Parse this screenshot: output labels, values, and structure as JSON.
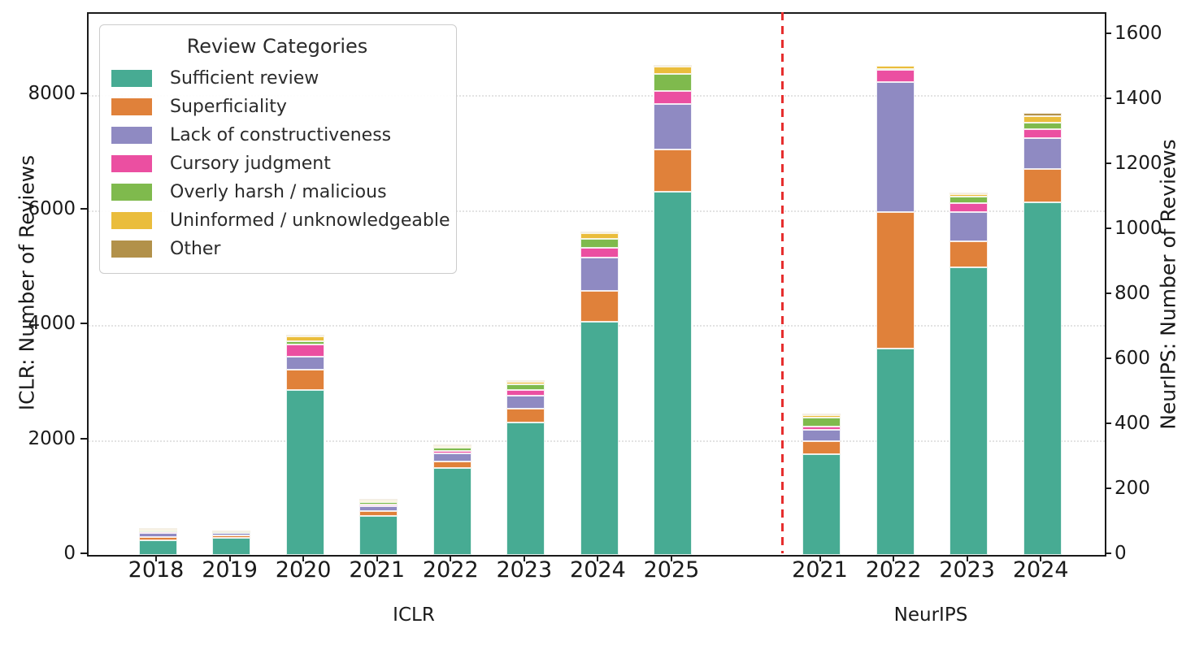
{
  "figure": {
    "left_axis_label": "ICLR: Number of Reviews",
    "right_axis_label": "NeurIPS: Number of Reviews",
    "group_labels": [
      "ICLR",
      "NeurIPS"
    ]
  },
  "legend": {
    "title": "Review Categories",
    "items": [
      {
        "label": "Sufficient review",
        "color": "#47ab93"
      },
      {
        "label": "Superficiality",
        "color": "#e0813a"
      },
      {
        "label": "Lack of constructiveness",
        "color": "#8f8ac2"
      },
      {
        "label": "Cursory judgment",
        "color": "#eb4fa1"
      },
      {
        "label": "Overly harsh / malicious",
        "color": "#7fba4d"
      },
      {
        "label": "Uninformed / unknowledgeable",
        "color": "#eabd3c"
      },
      {
        "label": "Other",
        "color": "#b2914a"
      }
    ]
  },
  "chart_data": {
    "type": "bar",
    "stacked": true,
    "title": "",
    "legend_title": "Review Categories",
    "grid": "horizontal-dotted",
    "divider": {
      "style": "dashed",
      "color": "#e62e2e",
      "between": [
        "ICLR 2025",
        "NeurIPS 2021"
      ]
    },
    "left_axis": {
      "label": "ICLR: Number of Reviews",
      "ticks": [
        0,
        2000,
        4000,
        6000,
        8000
      ],
      "range": [
        0,
        9420
      ],
      "gridlines": [
        2000,
        4000,
        6000,
        8000
      ]
    },
    "right_axis": {
      "label": "NeurIPS: Number of Reviews",
      "ticks": [
        0,
        200,
        400,
        600,
        800,
        1000,
        1200,
        1400,
        1600
      ],
      "range": [
        0,
        1665
      ]
    },
    "groups": [
      {
        "label": "ICLR",
        "axis": "left",
        "x": [
          "2018",
          "2019",
          "2020",
          "2021",
          "2022",
          "2023",
          "2024",
          "2025"
        ]
      },
      {
        "label": "NeurIPS",
        "axis": "right",
        "x": [
          "2021",
          "2022",
          "2023",
          "2024"
        ]
      }
    ],
    "series": [
      {
        "name": "Sufficient review",
        "color": "#47ab93",
        "values": {
          "ICLR": [
            260,
            300,
            2870,
            680,
            1510,
            2300,
            4060,
            6320
          ],
          "NeurIPS": [
            310,
            635,
            885,
            1085
          ]
        }
      },
      {
        "name": "Superficiality",
        "color": "#e0813a",
        "values": {
          "ICLR": [
            45,
            35,
            350,
            80,
            120,
            245,
            540,
            740
          ],
          "NeurIPS": [
            40,
            420,
            80,
            103
          ]
        }
      },
      {
        "name": "Lack of constructiveness",
        "color": "#8f8ac2",
        "values": {
          "ICLR": [
            80,
            45,
            225,
            90,
            145,
            230,
            570,
            790
          ],
          "NeurIPS": [
            35,
            400,
            90,
            95
          ]
        }
      },
      {
        "name": "Cursory judgment",
        "color": "#eb4fa1",
        "values": {
          "ICLR": [
            12,
            8,
            225,
            30,
            35,
            100,
            175,
            230
          ],
          "NeurIPS": [
            10,
            38,
            27,
            26
          ]
        }
      },
      {
        "name": "Overly harsh / malicious",
        "color": "#7fba4d",
        "values": {
          "ICLR": [
            25,
            8,
            57,
            45,
            60,
            95,
            160,
            290
          ],
          "NeurIPS": [
            28,
            3,
            21,
            21
          ]
        }
      },
      {
        "name": "Uninformed / unknowledgeable",
        "color": "#eabd3c",
        "values": {
          "ICLR": [
            12,
            5,
            85,
            20,
            25,
            40,
            90,
            130
          ],
          "NeurIPS": [
            7,
            9,
            8,
            21
          ]
        }
      },
      {
        "name": "Other",
        "color": "#b2914a",
        "values": {
          "ICLR": [
            5,
            2,
            10,
            10,
            15,
            20,
            20,
            20
          ],
          "NeurIPS": [
            3,
            0,
            4,
            8
          ]
        }
      }
    ]
  }
}
